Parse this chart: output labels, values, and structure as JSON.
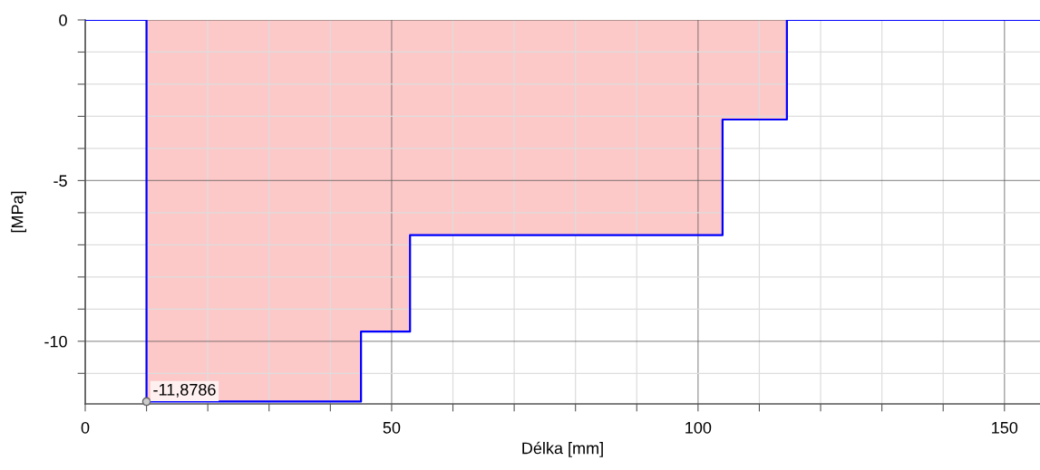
{
  "chart_data": {
    "type": "step",
    "xlabel": "Délka [mm]",
    "ylabel": "[MPa]",
    "series": [
      {
        "type": "area",
        "color": "#fdc8c8",
        "x": [
          10,
          45,
          45,
          53,
          53,
          104,
          104,
          114.5
        ],
        "values": [
          -11.8786,
          -11.8786,
          -9.7,
          -9.7,
          -6.7,
          -6.7,
          -3.1,
          -3.1
        ]
      },
      {
        "color": "#0000ff",
        "x": [
          0,
          10,
          45,
          53,
          104,
          114.5,
          155.8
        ],
        "values": [
          0,
          -11.8786,
          -9.7,
          -6.7,
          -3.1,
          0,
          0
        ]
      }
    ],
    "annotations": [
      {
        "text": "-11,8786",
        "x": 10,
        "y": -11.8786
      }
    ],
    "xlim": [
      0,
      155.8
    ],
    "ylim": [
      -11.95,
      0
    ],
    "xticks": [
      0,
      {
        "value": 10,
        "label": null
      },
      {
        "value": 20,
        "label": null
      },
      {
        "value": 30,
        "label": null
      },
      {
        "value": 40,
        "label": null
      },
      50,
      {
        "value": 60,
        "label": null
      },
      {
        "value": 70,
        "label": null
      },
      {
        "value": 80,
        "label": null
      },
      {
        "value": 90,
        "label": null
      },
      100,
      {
        "value": 110,
        "label": null
      },
      {
        "value": 120,
        "label": null
      },
      {
        "value": 130,
        "label": null
      },
      {
        "value": 140,
        "label": null
      },
      150
    ],
    "yticks": [
      0,
      {
        "value": -1,
        "label": null
      },
      {
        "value": -2,
        "label": null
      },
      {
        "value": -3,
        "label": null
      },
      {
        "value": -4,
        "label": null
      },
      -5,
      {
        "value": -6,
        "label": null
      },
      {
        "value": -7,
        "label": null
      },
      {
        "value": -8,
        "label": null
      },
      {
        "value": -9,
        "label": null
      },
      -10,
      {
        "value": -11,
        "label": null
      }
    ],
    "grid": true
  }
}
